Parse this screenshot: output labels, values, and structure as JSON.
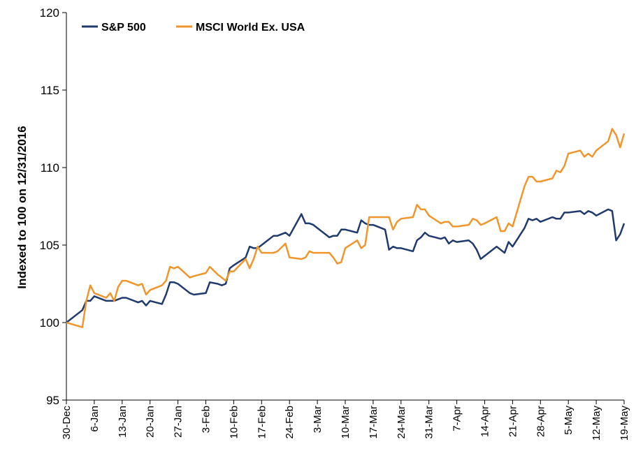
{
  "chart_data": {
    "type": "line",
    "ylabel": "Indexed to 100 on 12/31/2016",
    "ylim": [
      95,
      120
    ],
    "yticks": [
      "95",
      "100",
      "105",
      "110",
      "115",
      "120"
    ],
    "xlim_days": [
      0,
      140
    ],
    "xticks": [
      {
        "label": "30-Dec",
        "day": 0
      },
      {
        "label": "6-Jan",
        "day": 7
      },
      {
        "label": "13-Jan",
        "day": 14
      },
      {
        "label": "20-Jan",
        "day": 21
      },
      {
        "label": "27-Jan",
        "day": 28
      },
      {
        "label": "3-Feb",
        "day": 35
      },
      {
        "label": "10-Feb",
        "day": 42
      },
      {
        "label": "17-Feb",
        "day": 49
      },
      {
        "label": "24-Feb",
        "day": 56
      },
      {
        "label": "3-Mar",
        "day": 63
      },
      {
        "label": "10-Mar",
        "day": 70
      },
      {
        "label": "17-Mar",
        "day": 77
      },
      {
        "label": "24-Mar",
        "day": 84
      },
      {
        "label": "31-Mar",
        "day": 91
      },
      {
        "label": "7-Apr",
        "day": 98
      },
      {
        "label": "14-Apr",
        "day": 105
      },
      {
        "label": "21-Apr",
        "day": 112
      },
      {
        "label": "28-Apr",
        "day": 119
      },
      {
        "label": "5-May",
        "day": 126
      },
      {
        "label": "12-May",
        "day": 133
      },
      {
        "label": "19-May",
        "day": 140
      }
    ],
    "legend_position": "top-left",
    "grid": false,
    "series": [
      {
        "name": "S&P 500",
        "color": "#1f3a6e",
        "x": [
          0,
          4,
          5,
          6,
          7,
          10,
          11,
          12,
          13,
          14,
          15,
          18,
          19,
          20,
          21,
          24,
          25,
          26,
          27,
          28,
          31,
          32,
          35,
          36,
          38,
          39,
          40,
          41,
          42,
          45,
          46,
          47,
          48,
          49,
          52,
          53,
          55,
          56,
          59,
          60,
          61,
          62,
          63,
          66,
          67,
          68,
          69,
          70,
          73,
          74,
          75,
          76,
          77,
          80,
          81,
          82,
          83,
          84,
          87,
          88,
          89,
          90,
          91,
          94,
          95,
          96,
          97,
          98,
          101,
          102,
          103,
          104,
          105,
          108,
          109,
          110,
          111,
          112,
          115,
          116,
          117,
          118,
          119,
          122,
          123,
          124,
          125,
          126,
          129,
          130,
          131,
          132,
          133,
          136,
          137,
          138,
          139,
          140
        ],
        "y": [
          100.0,
          100.8,
          101.4,
          101.4,
          101.7,
          101.4,
          101.4,
          101.4,
          101.5,
          101.6,
          101.6,
          101.3,
          101.4,
          101.1,
          101.4,
          101.2,
          101.8,
          102.6,
          102.6,
          102.5,
          101.9,
          101.8,
          101.9,
          102.6,
          102.5,
          102.4,
          102.5,
          103.5,
          103.7,
          104.2,
          104.9,
          104.8,
          104.8,
          105.0,
          105.6,
          105.6,
          105.8,
          105.6,
          107.0,
          106.4,
          106.4,
          106.3,
          106.1,
          105.5,
          105.6,
          105.6,
          106.0,
          106.0,
          105.8,
          106.6,
          106.4,
          106.3,
          106.3,
          106.0,
          104.7,
          104.9,
          104.8,
          104.8,
          104.6,
          105.3,
          105.5,
          105.8,
          105.6,
          105.4,
          105.5,
          105.1,
          105.3,
          105.2,
          105.3,
          105.1,
          104.7,
          104.1,
          104.3,
          104.9,
          104.7,
          104.5,
          105.2,
          104.9,
          106.1,
          106.7,
          106.6,
          106.7,
          106.5,
          106.8,
          106.7,
          106.7,
          107.1,
          107.1,
          107.2,
          107.0,
          107.2,
          107.1,
          106.9,
          107.3,
          107.2,
          105.3,
          105.7,
          106.4
        ]
      },
      {
        "name": "MSCI World Ex. USA",
        "color": "#f0962c",
        "x": [
          0,
          4,
          5,
          6,
          7,
          10,
          11,
          12,
          13,
          14,
          15,
          18,
          19,
          20,
          21,
          24,
          25,
          26,
          27,
          28,
          31,
          32,
          35,
          36,
          38,
          39,
          40,
          41,
          42,
          45,
          46,
          47,
          48,
          49,
          52,
          53,
          55,
          56,
          59,
          60,
          61,
          62,
          63,
          66,
          67,
          68,
          69,
          70,
          73,
          74,
          75,
          76,
          77,
          80,
          81,
          82,
          83,
          84,
          87,
          88,
          89,
          90,
          91,
          94,
          95,
          96,
          97,
          98,
          101,
          102,
          103,
          104,
          105,
          108,
          109,
          110,
          111,
          112,
          115,
          116,
          117,
          118,
          119,
          122,
          123,
          124,
          125,
          126,
          129,
          130,
          131,
          132,
          133,
          136,
          137,
          138,
          139,
          140
        ],
        "y": [
          100.0,
          99.7,
          101.4,
          102.4,
          101.9,
          101.6,
          101.9,
          101.4,
          102.3,
          102.7,
          102.7,
          102.4,
          102.5,
          101.8,
          102.1,
          102.4,
          102.7,
          103.6,
          103.5,
          103.6,
          102.9,
          103.0,
          103.2,
          103.6,
          103.1,
          102.9,
          102.7,
          103.3,
          103.3,
          104.1,
          103.5,
          104.1,
          104.9,
          104.5,
          104.5,
          104.6,
          105.1,
          104.2,
          104.1,
          104.2,
          104.6,
          104.5,
          104.5,
          104.5,
          104.2,
          103.8,
          103.9,
          104.8,
          105.3,
          104.8,
          105.0,
          106.8,
          106.8,
          106.8,
          106.8,
          106.0,
          106.5,
          106.7,
          106.8,
          107.6,
          107.3,
          107.3,
          106.9,
          106.4,
          106.5,
          106.5,
          106.2,
          106.2,
          106.3,
          106.7,
          106.6,
          106.3,
          106.4,
          106.8,
          105.9,
          105.9,
          106.4,
          106.2,
          108.8,
          109.4,
          109.4,
          109.1,
          109.1,
          109.3,
          109.8,
          109.7,
          110.1,
          110.9,
          111.1,
          110.7,
          110.9,
          110.7,
          111.1,
          111.7,
          112.5,
          112.1,
          111.3,
          112.2
        ]
      }
    ]
  }
}
